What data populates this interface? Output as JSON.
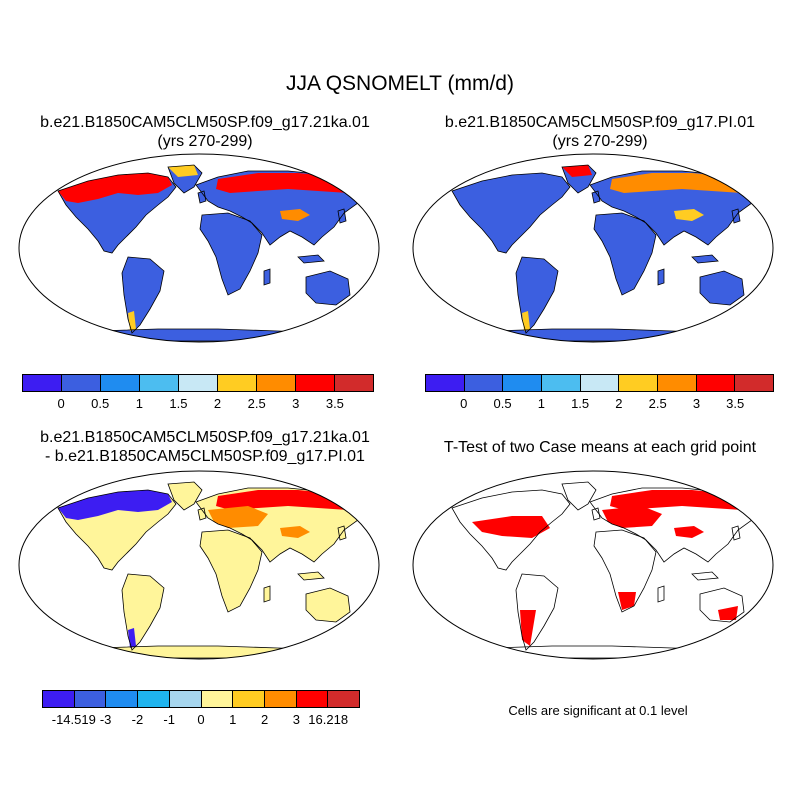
{
  "main_title": "JJA QSNOMELT (mm/d)",
  "panels": {
    "top_left": {
      "title_line1": "b.e21.B1850CAM5CLM50SP.f09_g17.21ka.01",
      "title_line2": "(yrs 270-299)"
    },
    "top_right": {
      "title_line1": "b.e21.B1850CAM5CLM50SP.f09_g17.PI.01",
      "title_line2": "(yrs 270-299)"
    },
    "bottom_left": {
      "title_line1": "b.e21.B1850CAM5CLM50SP.f09_g17.21ka.01",
      "title_line2": "- b.e21.B1850CAM5CLM50SP.f09_g17.PI.01"
    },
    "bottom_right": {
      "title_line1": "T-Test of two Case means at each grid point",
      "note": "Cells are significant at 0.1 level"
    }
  },
  "colorbar_abs": {
    "colors": [
      "#3d1df2",
      "#3c5fe0",
      "#1f8cf0",
      "#4cbdf0",
      "#c8e8f5",
      "#ffcc22",
      "#ff8c00",
      "#ff0000",
      "#d22b2b"
    ],
    "labels": [
      "0",
      "0.5",
      "1",
      "1.5",
      "2",
      "2.5",
      "3",
      "3.5"
    ]
  },
  "colorbar_diff": {
    "colors": [
      "#3d1df2",
      "#3c5fe0",
      "#1f8cf0",
      "#1fb4ee",
      "#a6d6ee",
      "#fff59a",
      "#ffcc22",
      "#ff8c00",
      "#ff0000",
      "#d22b2b"
    ],
    "labels": [
      "-14.519",
      "-3",
      "-2",
      "-1",
      "0",
      "1",
      "2",
      "3",
      "16.218"
    ]
  },
  "map_colors": {
    "ocean": "#ffffff",
    "land_abs": "#3c5fe0",
    "land_diff": "#fff59a",
    "melt_high": "#ff0000",
    "melt_mid": "#ff8c00",
    "melt_low": "#ffcc22",
    "melt_neg": "#3d1df2",
    "signif": "#ff0000",
    "coast": "#000000"
  }
}
